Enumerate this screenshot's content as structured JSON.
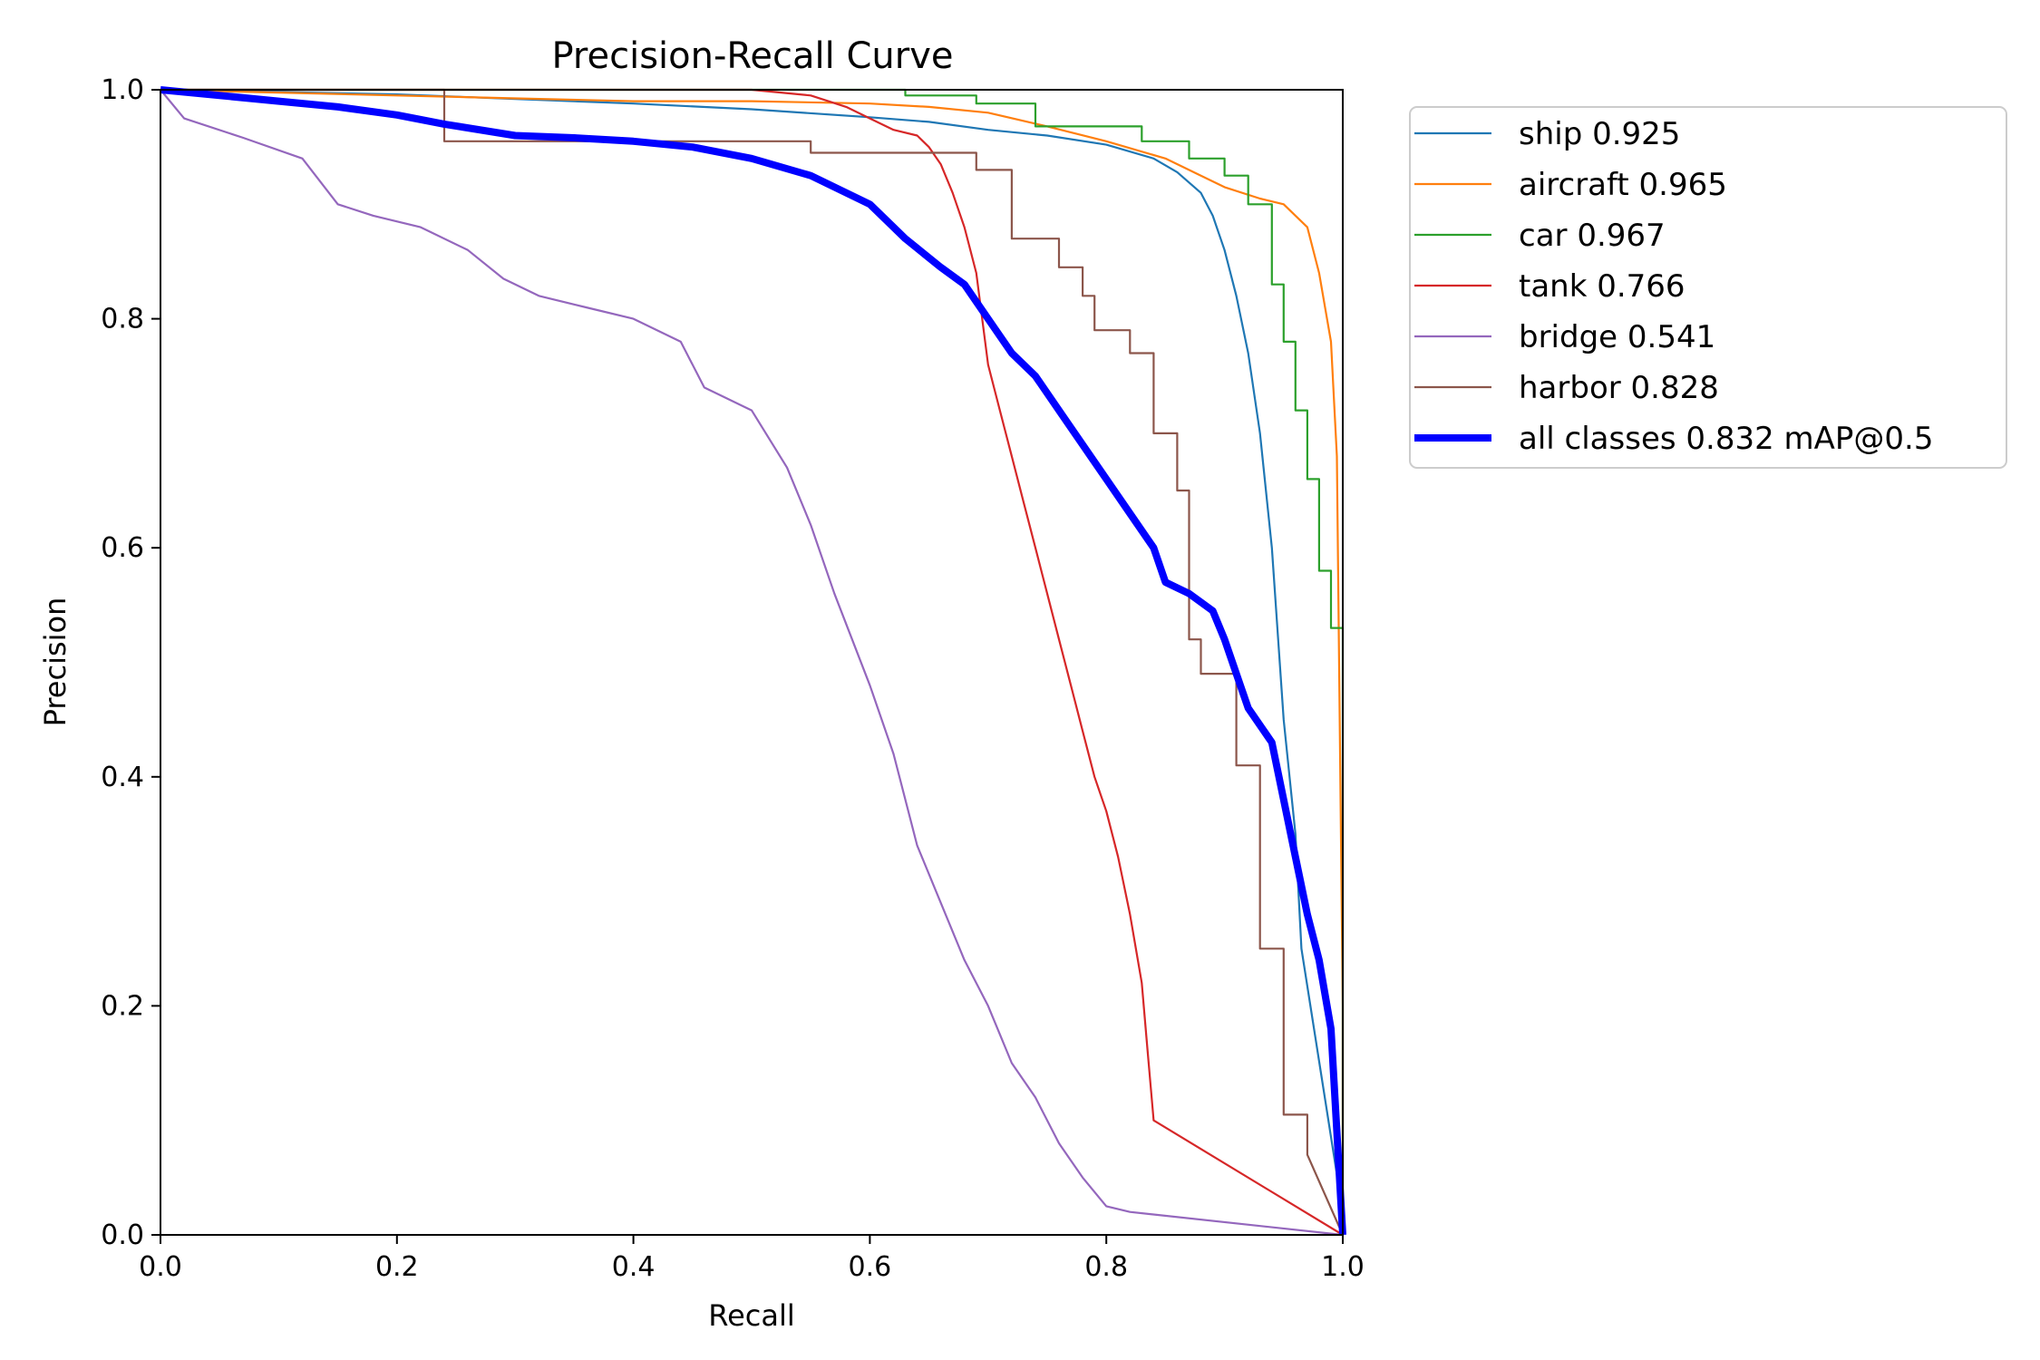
{
  "chart_data": {
    "type": "line",
    "title": "Precision-Recall Curve",
    "xlabel": "Recall",
    "ylabel": "Precision",
    "xlim": [
      0,
      1
    ],
    "ylim": [
      0,
      1
    ],
    "xticks": [
      "0.0",
      "0.2",
      "0.4",
      "0.6",
      "0.8",
      "1.0"
    ],
    "yticks": [
      "0.0",
      "0.2",
      "0.4",
      "0.6",
      "0.8",
      "1.0"
    ],
    "grid": false,
    "legend_position": "outside-top-right",
    "series": [
      {
        "name": "ship 0.925",
        "color": "#1f77b4",
        "emphasis": false,
        "points": [
          [
            0,
            1
          ],
          [
            0.1,
            0.998
          ],
          [
            0.2,
            0.996
          ],
          [
            0.3,
            0.992
          ],
          [
            0.4,
            0.988
          ],
          [
            0.5,
            0.983
          ],
          [
            0.6,
            0.976
          ],
          [
            0.65,
            0.972
          ],
          [
            0.7,
            0.965
          ],
          [
            0.75,
            0.96
          ],
          [
            0.8,
            0.952
          ],
          [
            0.84,
            0.94
          ],
          [
            0.86,
            0.928
          ],
          [
            0.88,
            0.91
          ],
          [
            0.89,
            0.89
          ],
          [
            0.9,
            0.86
          ],
          [
            0.91,
            0.82
          ],
          [
            0.92,
            0.77
          ],
          [
            0.93,
            0.7
          ],
          [
            0.94,
            0.6
          ],
          [
            0.95,
            0.45
          ],
          [
            0.96,
            0.35
          ],
          [
            0.965,
            0.25
          ],
          [
            1.0,
            0.02
          ]
        ]
      },
      {
        "name": "aircraft 0.965",
        "color": "#ff7f0e",
        "emphasis": false,
        "points": [
          [
            0,
            1
          ],
          [
            0.2,
            0.995
          ],
          [
            0.4,
            0.99
          ],
          [
            0.5,
            0.99
          ],
          [
            0.6,
            0.988
          ],
          [
            0.65,
            0.985
          ],
          [
            0.7,
            0.98
          ],
          [
            0.75,
            0.968
          ],
          [
            0.8,
            0.955
          ],
          [
            0.85,
            0.94
          ],
          [
            0.88,
            0.925
          ],
          [
            0.9,
            0.915
          ],
          [
            0.93,
            0.905
          ],
          [
            0.95,
            0.9
          ],
          [
            0.97,
            0.88
          ],
          [
            0.98,
            0.84
          ],
          [
            0.99,
            0.78
          ],
          [
            0.995,
            0.68
          ],
          [
            1.0,
            0.2
          ],
          [
            1.0,
            0.0
          ]
        ]
      },
      {
        "name": "car 0.967",
        "color": "#2ca02c",
        "emphasis": false,
        "points": [
          [
            0,
            1
          ],
          [
            0.63,
            1
          ],
          [
            0.63,
            0.995
          ],
          [
            0.69,
            0.995
          ],
          [
            0.69,
            0.988
          ],
          [
            0.74,
            0.988
          ],
          [
            0.74,
            0.968
          ],
          [
            0.83,
            0.968
          ],
          [
            0.83,
            0.955
          ],
          [
            0.87,
            0.955
          ],
          [
            0.87,
            0.94
          ],
          [
            0.9,
            0.94
          ],
          [
            0.9,
            0.925
          ],
          [
            0.92,
            0.925
          ],
          [
            0.92,
            0.9
          ],
          [
            0.94,
            0.9
          ],
          [
            0.94,
            0.83
          ],
          [
            0.95,
            0.83
          ],
          [
            0.95,
            0.78
          ],
          [
            0.96,
            0.78
          ],
          [
            0.96,
            0.72
          ],
          [
            0.97,
            0.72
          ],
          [
            0.97,
            0.66
          ],
          [
            0.98,
            0.66
          ],
          [
            0.98,
            0.58
          ],
          [
            0.99,
            0.58
          ],
          [
            0.99,
            0.53
          ],
          [
            1.0,
            0.53
          ],
          [
            1.0,
            0.0
          ]
        ]
      },
      {
        "name": "tank 0.766",
        "color": "#d62728",
        "emphasis": false,
        "points": [
          [
            0,
            1
          ],
          [
            0.5,
            1
          ],
          [
            0.55,
            0.995
          ],
          [
            0.58,
            0.985
          ],
          [
            0.6,
            0.975
          ],
          [
            0.62,
            0.965
          ],
          [
            0.64,
            0.96
          ],
          [
            0.65,
            0.95
          ],
          [
            0.66,
            0.935
          ],
          [
            0.67,
            0.91
          ],
          [
            0.68,
            0.88
          ],
          [
            0.69,
            0.84
          ],
          [
            0.695,
            0.8
          ],
          [
            0.7,
            0.76
          ],
          [
            0.71,
            0.72
          ],
          [
            0.72,
            0.68
          ],
          [
            0.73,
            0.64
          ],
          [
            0.74,
            0.6
          ],
          [
            0.75,
            0.56
          ],
          [
            0.76,
            0.52
          ],
          [
            0.77,
            0.48
          ],
          [
            0.78,
            0.44
          ],
          [
            0.79,
            0.4
          ],
          [
            0.8,
            0.37
          ],
          [
            0.81,
            0.33
          ],
          [
            0.82,
            0.28
          ],
          [
            0.83,
            0.22
          ],
          [
            0.835,
            0.16
          ],
          [
            0.84,
            0.1
          ],
          [
            1.0,
            0.0
          ]
        ]
      },
      {
        "name": "bridge 0.541",
        "color": "#9467bd",
        "emphasis": false,
        "points": [
          [
            0,
            1
          ],
          [
            0.02,
            0.975
          ],
          [
            0.07,
            0.958
          ],
          [
            0.12,
            0.94
          ],
          [
            0.15,
            0.9
          ],
          [
            0.18,
            0.89
          ],
          [
            0.22,
            0.88
          ],
          [
            0.26,
            0.86
          ],
          [
            0.29,
            0.835
          ],
          [
            0.32,
            0.82
          ],
          [
            0.36,
            0.81
          ],
          [
            0.4,
            0.8
          ],
          [
            0.44,
            0.78
          ],
          [
            0.46,
            0.74
          ],
          [
            0.5,
            0.72
          ],
          [
            0.53,
            0.67
          ],
          [
            0.55,
            0.62
          ],
          [
            0.57,
            0.56
          ],
          [
            0.6,
            0.48
          ],
          [
            0.62,
            0.42
          ],
          [
            0.64,
            0.34
          ],
          [
            0.66,
            0.29
          ],
          [
            0.68,
            0.24
          ],
          [
            0.7,
            0.2
          ],
          [
            0.72,
            0.15
          ],
          [
            0.74,
            0.12
          ],
          [
            0.76,
            0.08
          ],
          [
            0.78,
            0.05
          ],
          [
            0.8,
            0.025
          ],
          [
            0.82,
            0.02
          ],
          [
            1.0,
            0.0
          ]
        ]
      },
      {
        "name": "harbor 0.828",
        "color": "#8c564b",
        "emphasis": false,
        "points": [
          [
            0,
            1
          ],
          [
            0.24,
            1
          ],
          [
            0.24,
            0.955
          ],
          [
            0.55,
            0.955
          ],
          [
            0.55,
            0.945
          ],
          [
            0.69,
            0.945
          ],
          [
            0.69,
            0.93
          ],
          [
            0.72,
            0.93
          ],
          [
            0.72,
            0.87
          ],
          [
            0.76,
            0.87
          ],
          [
            0.76,
            0.845
          ],
          [
            0.78,
            0.845
          ],
          [
            0.78,
            0.82
          ],
          [
            0.79,
            0.82
          ],
          [
            0.79,
            0.79
          ],
          [
            0.82,
            0.79
          ],
          [
            0.82,
            0.77
          ],
          [
            0.84,
            0.77
          ],
          [
            0.84,
            0.7
          ],
          [
            0.86,
            0.7
          ],
          [
            0.86,
            0.65
          ],
          [
            0.87,
            0.65
          ],
          [
            0.87,
            0.52
          ],
          [
            0.88,
            0.52
          ],
          [
            0.88,
            0.49
          ],
          [
            0.91,
            0.49
          ],
          [
            0.91,
            0.41
          ],
          [
            0.93,
            0.41
          ],
          [
            0.93,
            0.25
          ],
          [
            0.95,
            0.25
          ],
          [
            0.95,
            0.105
          ],
          [
            0.97,
            0.105
          ],
          [
            0.97,
            0.07
          ],
          [
            1.0,
            0.0
          ]
        ]
      },
      {
        "name": "all classes 0.832 mAP@0.5",
        "color": "#0000ff",
        "emphasis": true,
        "points": [
          [
            0,
            1
          ],
          [
            0.05,
            0.995
          ],
          [
            0.1,
            0.99
          ],
          [
            0.15,
            0.985
          ],
          [
            0.2,
            0.978
          ],
          [
            0.24,
            0.97
          ],
          [
            0.3,
            0.96
          ],
          [
            0.35,
            0.958
          ],
          [
            0.4,
            0.955
          ],
          [
            0.45,
            0.95
          ],
          [
            0.5,
            0.94
          ],
          [
            0.55,
            0.925
          ],
          [
            0.6,
            0.9
          ],
          [
            0.63,
            0.87
          ],
          [
            0.66,
            0.845
          ],
          [
            0.68,
            0.83
          ],
          [
            0.7,
            0.8
          ],
          [
            0.72,
            0.77
          ],
          [
            0.74,
            0.75
          ],
          [
            0.76,
            0.72
          ],
          [
            0.78,
            0.69
          ],
          [
            0.8,
            0.66
          ],
          [
            0.82,
            0.63
          ],
          [
            0.84,
            0.6
          ],
          [
            0.85,
            0.57
          ],
          [
            0.87,
            0.56
          ],
          [
            0.89,
            0.545
          ],
          [
            0.9,
            0.52
          ],
          [
            0.91,
            0.49
          ],
          [
            0.92,
            0.46
          ],
          [
            0.94,
            0.43
          ],
          [
            0.95,
            0.38
          ],
          [
            0.96,
            0.33
          ],
          [
            0.97,
            0.28
          ],
          [
            0.98,
            0.24
          ],
          [
            0.99,
            0.18
          ],
          [
            1.0,
            0.0
          ]
        ]
      }
    ]
  }
}
